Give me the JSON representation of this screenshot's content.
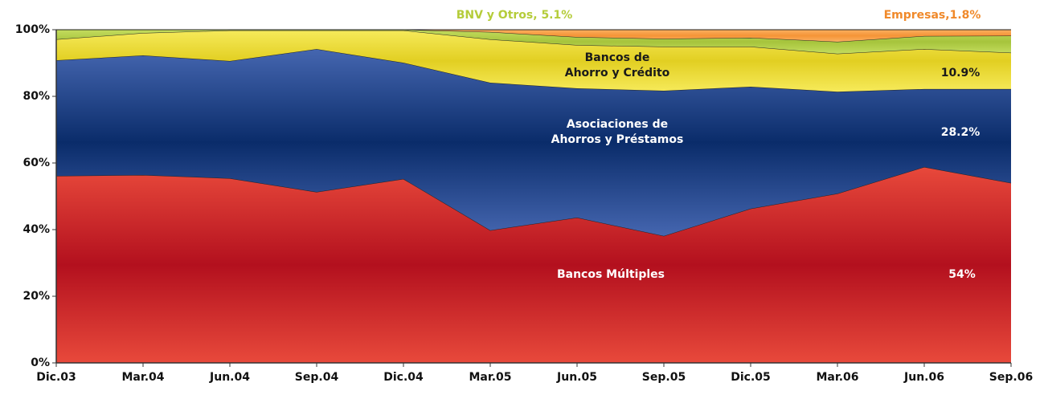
{
  "chart_data": {
    "type": "stacked_area",
    "categories": [
      "Dic.03",
      "Mar.04",
      "Jun.04",
      "Sep.04",
      "Dic.04",
      "Mar.05",
      "Jun.05",
      "Sep.05",
      "Dic.05",
      "Mar.06",
      "Jun.06",
      "Sep.06"
    ],
    "ylim": [
      0,
      100
    ],
    "yticks": [
      {
        "value": 0,
        "label": "0%"
      },
      {
        "value": 20,
        "label": "20%"
      },
      {
        "value": 40,
        "label": "40%"
      },
      {
        "value": 60,
        "label": "60%"
      },
      {
        "value": 80,
        "label": "80%"
      },
      {
        "value": 100,
        "label": "100%"
      }
    ],
    "series": [
      {
        "label": [
          "Bancos  Múltiples"
        ],
        "color": [
          "#e8493b",
          "#b3101e"
        ],
        "label_color": "#ffffff",
        "values": [
          56.1,
          56.4,
          55.4,
          51.3,
          55.2,
          39.8,
          43.6,
          38.1,
          46.3,
          50.8,
          58.8,
          54
        ],
        "value_labels": [
          null,
          null,
          null,
          null,
          null,
          null,
          null,
          null,
          null,
          null,
          null,
          "54%"
        ]
      },
      {
        "label": [
          "Asociaciones de",
          "Ahorros y Préstamos"
        ],
        "color": [
          "#4566b0",
          "#0a2c6a"
        ],
        "label_color": "#ffffff",
        "values": [
          34.7,
          35.9,
          35.2,
          42.9,
          34.9,
          44.3,
          38.8,
          43.6,
          36.6,
          30.6,
          23.4,
          28.2
        ],
        "value_labels": [
          null,
          null,
          null,
          null,
          null,
          null,
          null,
          null,
          null,
          null,
          null,
          "28.2%"
        ]
      },
      {
        "label": [
          "Bancos de",
          "Ahorro y Crédito"
        ],
        "color": [
          "#f6ea5a",
          "#e2cf22"
        ],
        "label_color": "#1a1a1a",
        "values": [
          6.3,
          6.7,
          9.2,
          5.6,
          9.7,
          13.0,
          13.0,
          13.2,
          12.0,
          11.4,
          12.0,
          10.9
        ],
        "value_labels": [
          null,
          null,
          null,
          null,
          null,
          null,
          null,
          null,
          null,
          null,
          null,
          "10.9%"
        ]
      },
      {
        "color": [
          "#c4dc5e",
          "#a6c43c"
        ],
        "label_color": "#b5cc3a",
        "values": [
          2.9,
          1.0,
          0.2,
          0.2,
          0.2,
          2.2,
          2.4,
          2.4,
          2.7,
          3.6,
          3.9,
          5.1
        ],
        "value_labels": [
          null,
          null,
          null,
          null,
          null,
          null,
          null,
          null,
          null,
          null,
          null,
          "BNV y Otros, 5.1%"
        ]
      },
      {
        "color": [
          "#fbb061",
          "#f59436"
        ],
        "label_color": "#f0892a",
        "values": [
          0,
          0,
          0,
          0,
          0,
          0.7,
          2.2,
          2.7,
          2.4,
          3.6,
          1.9,
          1.8
        ],
        "value_labels": [
          null,
          null,
          null,
          null,
          null,
          null,
          null,
          null,
          null,
          null,
          null,
          "Empresas,1.8%"
        ]
      }
    ]
  }
}
